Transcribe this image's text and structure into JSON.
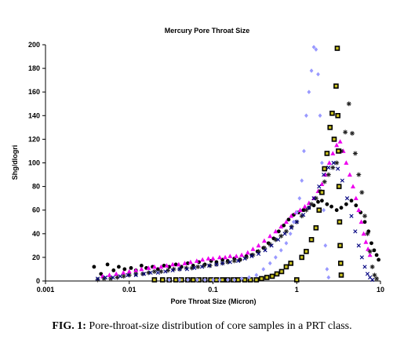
{
  "caption": {
    "label": "FIG. 1:",
    "text": "Pore-throat-size distribution of core samples in a PRT class."
  },
  "chart_data": {
    "type": "scatter",
    "title": "Mercury Pore Throat Size",
    "xlabel": "Pore Throat Size (Micron)",
    "ylabel": "Shg/dlogri",
    "xscale": "log",
    "xlim": [
      0.001,
      10
    ],
    "ylim": [
      0,
      200
    ],
    "grid": false,
    "legend": "none",
    "x_tick_labels": [
      "0.001",
      "0.01",
      "0.1",
      "1",
      "10"
    ],
    "y_tick_labels": [
      "0",
      "20",
      "40",
      "60",
      "80",
      "100",
      "120",
      "140",
      "160",
      "180",
      "200"
    ],
    "y_ticks": [
      0,
      20,
      40,
      60,
      80,
      100,
      120,
      140,
      160,
      180,
      200
    ],
    "x_ticks": [
      0.001,
      0.01,
      0.1,
      1,
      10
    ],
    "series": [
      {
        "marker": "circle",
        "color": "#000000",
        "points": [
          [
            0.0038,
            12
          ],
          [
            0.0046,
            6
          ],
          [
            0.0055,
            14
          ],
          [
            0.0065,
            9
          ],
          [
            0.0075,
            12
          ],
          [
            0.0088,
            10
          ],
          [
            0.0105,
            11
          ],
          [
            0.012,
            9
          ],
          [
            0.014,
            13
          ],
          [
            0.016,
            11
          ],
          [
            0.019,
            12
          ],
          [
            0.022,
            10
          ],
          [
            0.026,
            13
          ],
          [
            0.03,
            12
          ],
          [
            0.036,
            14
          ],
          [
            0.042,
            12
          ],
          [
            0.05,
            15
          ],
          [
            0.058,
            13
          ],
          [
            0.068,
            16
          ],
          [
            0.08,
            14
          ],
          [
            0.095,
            17
          ],
          [
            0.11,
            16
          ],
          [
            0.13,
            18
          ],
          [
            0.15,
            17
          ],
          [
            0.18,
            19
          ],
          [
            0.21,
            18
          ],
          [
            0.25,
            21
          ],
          [
            0.29,
            22
          ],
          [
            0.34,
            25
          ],
          [
            0.4,
            28
          ],
          [
            0.46,
            32
          ],
          [
            0.53,
            36
          ],
          [
            0.61,
            42
          ],
          [
            0.7,
            47
          ],
          [
            0.8,
            52
          ],
          [
            0.92,
            56
          ],
          [
            1.05,
            58
          ],
          [
            1.2,
            60
          ],
          [
            1.4,
            62
          ],
          [
            1.6,
            64
          ],
          [
            1.8,
            67
          ],
          [
            2.0,
            68
          ],
          [
            2.3,
            65
          ],
          [
            2.6,
            63
          ],
          [
            3.0,
            60
          ],
          [
            3.4,
            62
          ],
          [
            3.9,
            65
          ],
          [
            4.5,
            68
          ],
          [
            5.1,
            64
          ],
          [
            5.8,
            58
          ],
          [
            6.5,
            50
          ],
          [
            7.2,
            42
          ],
          [
            7.8,
            32
          ],
          [
            8.4,
            26
          ],
          [
            9.0,
            22
          ],
          [
            9.5,
            18
          ]
        ]
      },
      {
        "marker": "triangle",
        "color": "#ee00ee",
        "points": [
          [
            0.0048,
            4
          ],
          [
            0.0058,
            5
          ],
          [
            0.007,
            6
          ],
          [
            0.0085,
            7
          ],
          [
            0.01,
            8
          ],
          [
            0.012,
            9
          ],
          [
            0.014,
            10
          ],
          [
            0.017,
            11
          ],
          [
            0.02,
            12
          ],
          [
            0.024,
            12
          ],
          [
            0.028,
            13
          ],
          [
            0.033,
            14
          ],
          [
            0.039,
            14
          ],
          [
            0.046,
            15
          ],
          [
            0.054,
            16
          ],
          [
            0.064,
            17
          ],
          [
            0.075,
            18
          ],
          [
            0.088,
            19
          ],
          [
            0.1,
            19
          ],
          [
            0.12,
            20
          ],
          [
            0.14,
            20
          ],
          [
            0.16,
            21
          ],
          [
            0.19,
            21
          ],
          [
            0.22,
            22
          ],
          [
            0.26,
            24
          ],
          [
            0.3,
            27
          ],
          [
            0.35,
            30
          ],
          [
            0.41,
            34
          ],
          [
            0.48,
            38
          ],
          [
            0.56,
            42
          ],
          [
            0.65,
            46
          ],
          [
            0.75,
            50
          ],
          [
            0.86,
            55
          ],
          [
            0.98,
            58
          ],
          [
            1.1,
            60
          ],
          [
            1.25,
            63
          ],
          [
            1.4,
            66
          ],
          [
            1.6,
            70
          ],
          [
            1.8,
            76
          ],
          [
            2.0,
            82
          ],
          [
            2.2,
            90
          ],
          [
            2.45,
            100
          ],
          [
            2.7,
            108
          ],
          [
            3.0,
            115
          ],
          [
            3.3,
            118
          ],
          [
            3.6,
            110
          ],
          [
            3.9,
            100
          ],
          [
            4.3,
            90
          ],
          [
            4.7,
            80
          ],
          [
            5.1,
            70
          ],
          [
            5.5,
            60
          ],
          [
            5.9,
            50
          ],
          [
            6.3,
            40
          ],
          [
            6.7,
            33
          ],
          [
            7.1,
            27
          ],
          [
            7.5,
            22
          ]
        ]
      },
      {
        "marker": "star",
        "color": "#222222",
        "points": [
          [
            0.0042,
            1
          ],
          [
            0.005,
            2
          ],
          [
            0.006,
            2
          ],
          [
            0.0072,
            3
          ],
          [
            0.0086,
            4
          ],
          [
            0.01,
            5
          ],
          [
            0.012,
            6
          ],
          [
            0.0145,
            6
          ],
          [
            0.017,
            7
          ],
          [
            0.02,
            8
          ],
          [
            0.024,
            8
          ],
          [
            0.029,
            9
          ],
          [
            0.034,
            10
          ],
          [
            0.04,
            10
          ],
          [
            0.048,
            11
          ],
          [
            0.056,
            11
          ],
          [
            0.066,
            12
          ],
          [
            0.078,
            13
          ],
          [
            0.092,
            13
          ],
          [
            0.11,
            14
          ],
          [
            0.13,
            15
          ],
          [
            0.15,
            16
          ],
          [
            0.18,
            17
          ],
          [
            0.21,
            18
          ],
          [
            0.25,
            20
          ],
          [
            0.3,
            22
          ],
          [
            0.35,
            25
          ],
          [
            0.41,
            28
          ],
          [
            0.48,
            31
          ],
          [
            0.56,
            35
          ],
          [
            0.65,
            38
          ],
          [
            0.75,
            42
          ],
          [
            0.87,
            46
          ],
          [
            1.0,
            50
          ],
          [
            1.15,
            55
          ],
          [
            1.3,
            60
          ],
          [
            1.5,
            65
          ],
          [
            1.7,
            70
          ],
          [
            1.9,
            76
          ],
          [
            2.15,
            84
          ],
          [
            2.4,
            90
          ],
          [
            2.7,
            96
          ],
          [
            3.0,
            100
          ],
          [
            3.4,
            110
          ],
          [
            3.8,
            126
          ],
          [
            4.2,
            150
          ],
          [
            4.6,
            125
          ],
          [
            5.0,
            108
          ],
          [
            5.5,
            90
          ],
          [
            6.0,
            75
          ],
          [
            6.5,
            55
          ],
          [
            7.0,
            40
          ],
          [
            7.5,
            25
          ],
          [
            8.0,
            12
          ],
          [
            8.5,
            5
          ],
          [
            9.0,
            2
          ]
        ]
      },
      {
        "marker": "square",
        "color": "#000000",
        "points": [
          [
            0.02,
            1
          ],
          [
            0.025,
            1
          ],
          [
            0.03,
            1
          ],
          [
            0.036,
            1
          ],
          [
            0.042,
            1
          ],
          [
            0.05,
            1
          ],
          [
            0.058,
            1
          ],
          [
            0.068,
            1
          ],
          [
            0.08,
            1
          ],
          [
            0.094,
            1
          ],
          [
            0.11,
            1
          ],
          [
            0.13,
            1
          ],
          [
            0.15,
            1
          ],
          [
            0.175,
            1
          ],
          [
            0.2,
            1
          ],
          [
            0.24,
            1
          ],
          [
            0.28,
            1
          ],
          [
            0.33,
            1
          ],
          [
            0.38,
            2
          ],
          [
            0.44,
            3
          ],
          [
            0.51,
            4
          ],
          [
            0.58,
            6
          ],
          [
            0.66,
            8
          ],
          [
            0.75,
            12
          ],
          [
            0.85,
            15
          ],
          [
            1.0,
            1
          ],
          [
            1.15,
            20
          ],
          [
            1.3,
            25
          ],
          [
            1.5,
            35
          ],
          [
            1.7,
            45
          ],
          [
            1.85,
            60
          ],
          [
            2.0,
            75
          ],
          [
            2.15,
            95
          ],
          [
            2.3,
            108
          ],
          [
            2.5,
            130
          ],
          [
            2.65,
            142
          ],
          [
            2.8,
            120
          ],
          [
            2.95,
            165
          ],
          [
            3.05,
            197
          ],
          [
            3.1,
            140
          ],
          [
            3.15,
            110
          ],
          [
            3.2,
            80
          ],
          [
            3.25,
            50
          ],
          [
            3.3,
            30
          ],
          [
            3.35,
            15
          ],
          [
            3.4,
            5
          ]
        ]
      },
      {
        "marker": "diamond",
        "color": "#9999ff",
        "points": [
          [
            0.03,
            1
          ],
          [
            0.04,
            1
          ],
          [
            0.05,
            1
          ],
          [
            0.065,
            1
          ],
          [
            0.08,
            1
          ],
          [
            0.1,
            1
          ],
          [
            0.12,
            1
          ],
          [
            0.15,
            1
          ],
          [
            0.18,
            1
          ],
          [
            0.22,
            2
          ],
          [
            0.27,
            3
          ],
          [
            0.33,
            5
          ],
          [
            0.4,
            10
          ],
          [
            0.48,
            15
          ],
          [
            0.56,
            20
          ],
          [
            0.65,
            26
          ],
          [
            0.75,
            32
          ],
          [
            0.84,
            40
          ],
          [
            0.92,
            50
          ],
          [
            1.0,
            58
          ],
          [
            1.08,
            70
          ],
          [
            1.15,
            85
          ],
          [
            1.22,
            110
          ],
          [
            1.3,
            140
          ],
          [
            1.4,
            160
          ],
          [
            1.5,
            178
          ],
          [
            1.6,
            198
          ],
          [
            1.7,
            196
          ],
          [
            1.8,
            175
          ],
          [
            1.9,
            140
          ],
          [
            2.0,
            100
          ],
          [
            2.1,
            60
          ],
          [
            2.2,
            30
          ],
          [
            2.3,
            10
          ],
          [
            2.4,
            3
          ]
        ]
      },
      {
        "marker": "x",
        "color": "#000080",
        "points": [
          [
            0.0042,
            2
          ],
          [
            0.0052,
            3
          ],
          [
            0.0064,
            3
          ],
          [
            0.0078,
            4
          ],
          [
            0.0096,
            5
          ],
          [
            0.012,
            5
          ],
          [
            0.015,
            6
          ],
          [
            0.018,
            7
          ],
          [
            0.022,
            7
          ],
          [
            0.027,
            8
          ],
          [
            0.033,
            9
          ],
          [
            0.04,
            10
          ],
          [
            0.049,
            10
          ],
          [
            0.06,
            11
          ],
          [
            0.074,
            12
          ],
          [
            0.09,
            13
          ],
          [
            0.11,
            14
          ],
          [
            0.13,
            15
          ],
          [
            0.16,
            16
          ],
          [
            0.2,
            17
          ],
          [
            0.24,
            19
          ],
          [
            0.29,
            21
          ],
          [
            0.35,
            23
          ],
          [
            0.42,
            26
          ],
          [
            0.5,
            30
          ],
          [
            0.6,
            35
          ],
          [
            0.72,
            40
          ],
          [
            0.86,
            45
          ],
          [
            1.0,
            50
          ],
          [
            1.2,
            56
          ],
          [
            1.4,
            62
          ],
          [
            1.6,
            70
          ],
          [
            1.85,
            80
          ],
          [
            2.1,
            90
          ],
          [
            2.4,
            96
          ],
          [
            2.75,
            100
          ],
          [
            3.1,
            95
          ],
          [
            3.5,
            85
          ],
          [
            4.0,
            70
          ],
          [
            4.5,
            55
          ],
          [
            5.0,
            42
          ],
          [
            5.5,
            30
          ],
          [
            6.0,
            20
          ],
          [
            6.5,
            12
          ],
          [
            7.0,
            6
          ],
          [
            7.5,
            3
          ],
          [
            8.0,
            1
          ]
        ]
      }
    ]
  }
}
